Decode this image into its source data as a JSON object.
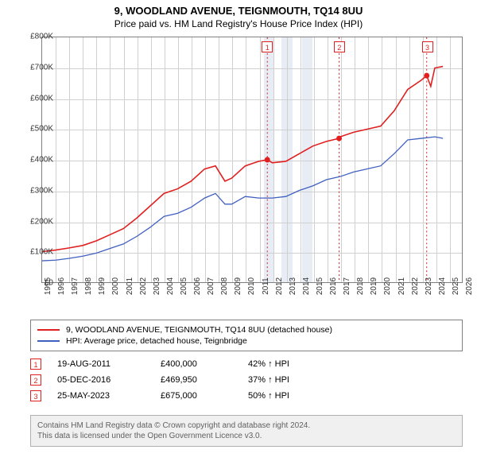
{
  "title": "9, WOODLAND AVENUE, TEIGNMOUTH, TQ14 8UU",
  "subtitle": "Price paid vs. HM Land Registry's House Price Index (HPI)",
  "chart": {
    "type": "line",
    "x_min": 1995,
    "x_max": 2026,
    "y_min": 0,
    "y_max": 800000,
    "y_ticks": [
      0,
      100000,
      200000,
      300000,
      400000,
      500000,
      600000,
      700000,
      800000
    ],
    "y_tick_labels": [
      "£0",
      "£100K",
      "£200K",
      "£300K",
      "£400K",
      "£500K",
      "£600K",
      "£700K",
      "£800K"
    ],
    "x_ticks": [
      1995,
      1996,
      1997,
      1998,
      1999,
      2000,
      2001,
      2002,
      2003,
      2004,
      2005,
      2006,
      2007,
      2008,
      2009,
      2010,
      2011,
      2012,
      2013,
      2014,
      2015,
      2016,
      2017,
      2018,
      2019,
      2020,
      2021,
      2022,
      2023,
      2024,
      2025,
      2026
    ],
    "grid_color": "#d0d0d0",
    "shade_color": "#e8edf5",
    "shaded_ranges": [
      [
        2011.3,
        2012.1
      ],
      [
        2012.6,
        2013.4
      ],
      [
        2014.1,
        2014.9
      ]
    ],
    "series": [
      {
        "name": "property",
        "color": "#e02020",
        "width": 1.6,
        "label": "9, WOODLAND AVENUE, TEIGNMOUTH, TQ14 8UU (detached house)",
        "points": [
          [
            1995,
            100000
          ],
          [
            1996,
            105000
          ],
          [
            1997,
            112000
          ],
          [
            1998,
            120000
          ],
          [
            1999,
            135000
          ],
          [
            2000,
            155000
          ],
          [
            2001,
            175000
          ],
          [
            2002,
            210000
          ],
          [
            2003,
            250000
          ],
          [
            2004,
            290000
          ],
          [
            2005,
            305000
          ],
          [
            2006,
            330000
          ],
          [
            2007,
            370000
          ],
          [
            2007.8,
            380000
          ],
          [
            2008.5,
            330000
          ],
          [
            2009,
            340000
          ],
          [
            2010,
            380000
          ],
          [
            2011,
            395000
          ],
          [
            2011.63,
            400000
          ],
          [
            2012,
            390000
          ],
          [
            2013,
            395000
          ],
          [
            2014,
            420000
          ],
          [
            2015,
            445000
          ],
          [
            2016,
            460000
          ],
          [
            2016.93,
            469950
          ],
          [
            2017,
            475000
          ],
          [
            2018,
            490000
          ],
          [
            2019,
            500000
          ],
          [
            2020,
            510000
          ],
          [
            2021,
            560000
          ],
          [
            2022,
            630000
          ],
          [
            2023,
            660000
          ],
          [
            2023.4,
            675000
          ],
          [
            2023.7,
            640000
          ],
          [
            2024,
            700000
          ],
          [
            2024.6,
            705000
          ]
        ]
      },
      {
        "name": "hpi",
        "color": "#4060c0",
        "width": 1.3,
        "label": "HPI: Average price, detached house, Teignbridge",
        "points": [
          [
            1995,
            70000
          ],
          [
            1996,
            72000
          ],
          [
            1997,
            78000
          ],
          [
            1998,
            85000
          ],
          [
            1999,
            95000
          ],
          [
            2000,
            110000
          ],
          [
            2001,
            125000
          ],
          [
            2002,
            150000
          ],
          [
            2003,
            180000
          ],
          [
            2004,
            215000
          ],
          [
            2005,
            225000
          ],
          [
            2006,
            245000
          ],
          [
            2007,
            275000
          ],
          [
            2007.8,
            290000
          ],
          [
            2008.5,
            255000
          ],
          [
            2009,
            255000
          ],
          [
            2010,
            280000
          ],
          [
            2011,
            275000
          ],
          [
            2012,
            275000
          ],
          [
            2013,
            280000
          ],
          [
            2014,
            300000
          ],
          [
            2015,
            315000
          ],
          [
            2016,
            335000
          ],
          [
            2017,
            345000
          ],
          [
            2018,
            360000
          ],
          [
            2019,
            370000
          ],
          [
            2020,
            380000
          ],
          [
            2021,
            420000
          ],
          [
            2022,
            465000
          ],
          [
            2023,
            470000
          ],
          [
            2024,
            475000
          ],
          [
            2024.6,
            470000
          ]
        ]
      }
    ],
    "sale_markers": [
      {
        "n": "1",
        "x": 2011.63,
        "y": 400000,
        "dashed_color": "#e02020"
      },
      {
        "n": "2",
        "x": 2016.93,
        "y": 469950,
        "dashed_color": "#e02020"
      },
      {
        "n": "3",
        "x": 2023.4,
        "y": 675000,
        "dashed_color": "#e02020"
      }
    ],
    "marker_fill": "#e02020",
    "marker_radius": 3.5
  },
  "sales_table": [
    {
      "n": "1",
      "date": "19-AUG-2011",
      "price": "£400,000",
      "pct": "42% ↑ HPI"
    },
    {
      "n": "2",
      "date": "05-DEC-2016",
      "price": "£469,950",
      "pct": "37% ↑ HPI"
    },
    {
      "n": "3",
      "date": "25-MAY-2023",
      "price": "£675,000",
      "pct": "50% ↑ HPI"
    }
  ],
  "attribution_l1": "Contains HM Land Registry data © Crown copyright and database right 2024.",
  "attribution_l2": "This data is licensed under the Open Government Licence v3.0."
}
